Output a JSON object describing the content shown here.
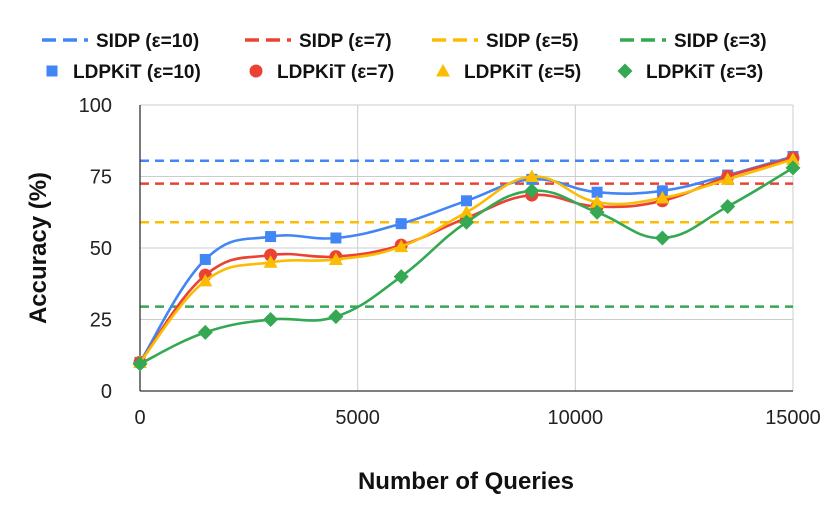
{
  "chart_data": {
    "type": "line",
    "title": "",
    "xlabel": "Number of Queries",
    "ylabel": "Accuracy (%)",
    "xlim": [
      0,
      15000
    ],
    "ylim": [
      0,
      100
    ],
    "x_ticks": [
      0,
      5000,
      10000,
      15000
    ],
    "x_tick_labels": [
      "0",
      "5000",
      "10000",
      "15000"
    ],
    "y_ticks": [
      0,
      25,
      50,
      75,
      100
    ],
    "y_tick_labels": [
      "0",
      "25",
      "50",
      "75",
      "100"
    ],
    "grid": true,
    "legend_position": "top",
    "x": [
      0,
      1500,
      3000,
      4500,
      6000,
      7500,
      9000,
      10500,
      12000,
      13500,
      15000
    ],
    "reference_lines": [
      {
        "name": "SIDP (ε=10)",
        "value": 80.5,
        "color": "#4285f4"
      },
      {
        "name": "SIDP (ε=7)",
        "value": 72.5,
        "color": "#ea4335"
      },
      {
        "name": "SIDP (ε=5)",
        "value": 59,
        "color": "#fbbc04"
      },
      {
        "name": "SIDP (ε=3)",
        "value": 29.5,
        "color": "#34a853"
      }
    ],
    "series": [
      {
        "name": "LDPKiT (ε=10)",
        "marker": "square",
        "color": "#4285f4",
        "values": [
          10,
          46,
          54,
          53.5,
          58.5,
          66.5,
          74,
          69.5,
          70,
          75.5,
          82
        ]
      },
      {
        "name": "LDPKiT (ε=7)",
        "marker": "circle",
        "color": "#ea4335",
        "values": [
          10,
          40.5,
          47.5,
          47,
          51,
          60.5,
          68.5,
          64.5,
          66.5,
          75,
          81.5
        ]
      },
      {
        "name": "LDPKiT (ε=5)",
        "marker": "triangle",
        "color": "#fbbc04",
        "values": [
          10,
          38.5,
          45,
          46,
          50.5,
          62.5,
          75,
          66,
          67.5,
          74,
          81
        ]
      },
      {
        "name": "LDPKiT (ε=3)",
        "marker": "diamond",
        "color": "#34a853",
        "values": [
          9.5,
          20.5,
          25,
          26,
          40,
          59,
          70,
          62.5,
          53.5,
          64.5,
          78
        ]
      }
    ]
  }
}
